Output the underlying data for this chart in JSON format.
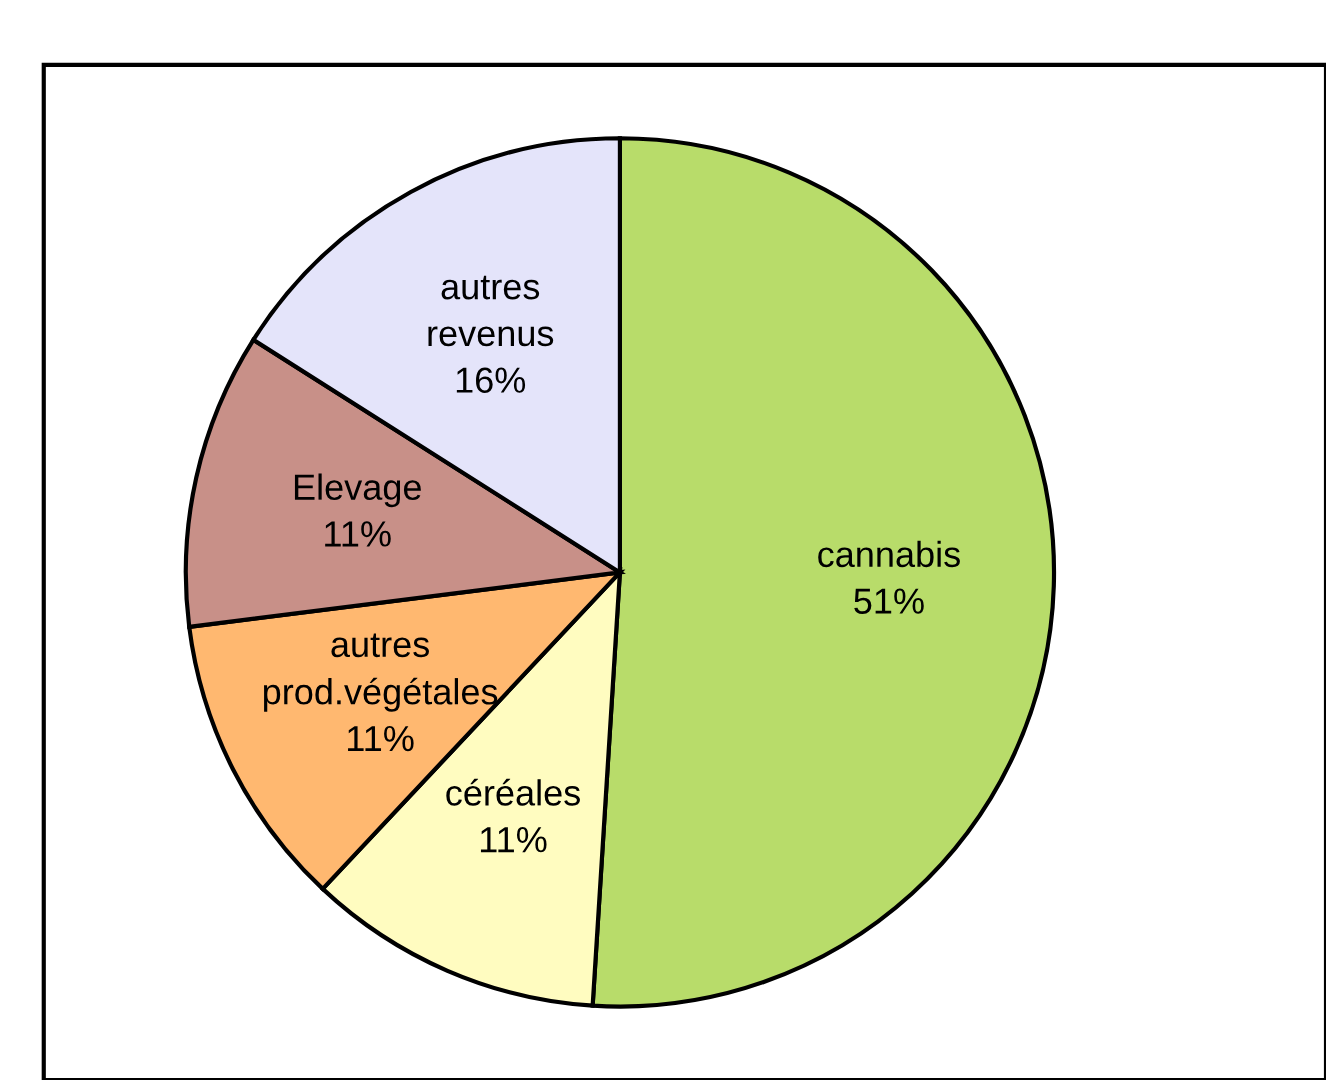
{
  "chart_data": {
    "type": "pie",
    "categories": [
      "cannabis",
      "céréales",
      "autres\nprod.végétales",
      "Elevage",
      "autres\nrevenus"
    ],
    "values": [
      51,
      11,
      11,
      11,
      16
    ],
    "value_labels": [
      "51%",
      "11%",
      "11%",
      "11%",
      "16%"
    ],
    "colors": [
      "#b8dc6a",
      "#fffcc0",
      "#ffb870",
      "#c89088",
      "#e4e4fa"
    ]
  }
}
